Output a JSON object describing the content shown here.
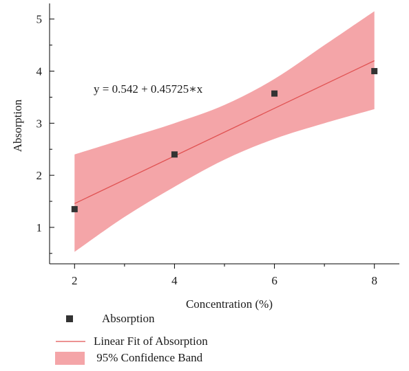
{
  "chart_data": {
    "type": "scatter",
    "xlabel": "Concentration (%)",
    "ylabel": "Absorption",
    "xlim": [
      1.5,
      8.5
    ],
    "ylim": [
      0.3,
      5.3
    ],
    "x_ticks": [
      2,
      4,
      6,
      8
    ],
    "y_ticks": [
      1,
      2,
      3,
      4,
      5
    ],
    "grid": false,
    "annotation": "y = 0.542 + 0.45725∗x",
    "series": [
      {
        "name": "Absorption",
        "marker": "square",
        "color": "#333333",
        "points": [
          {
            "x": 2,
            "y": 1.35
          },
          {
            "x": 4,
            "y": 2.4
          },
          {
            "x": 6,
            "y": 3.57
          },
          {
            "x": 8,
            "y": 4.0
          }
        ]
      },
      {
        "name": "Linear Fit of Absorption",
        "type": "line",
        "color": "#e05252",
        "intercept": 0.542,
        "slope": 0.45725,
        "x_range": [
          2,
          8
        ]
      },
      {
        "name": "95% Confidence Band",
        "type": "band",
        "color": "#f4a5a8",
        "upper": [
          {
            "x": 2,
            "y": 2.4
          },
          {
            "x": 3,
            "y": 2.7
          },
          {
            "x": 4,
            "y": 3.0
          },
          {
            "x": 5,
            "y": 3.35
          },
          {
            "x": 6,
            "y": 3.85
          },
          {
            "x": 7,
            "y": 4.5
          },
          {
            "x": 8,
            "y": 5.15
          }
        ],
        "lower": [
          {
            "x": 2,
            "y": 0.53
          },
          {
            "x": 3,
            "y": 1.2
          },
          {
            "x": 4,
            "y": 1.78
          },
          {
            "x": 5,
            "y": 2.3
          },
          {
            "x": 6,
            "y": 2.7
          },
          {
            "x": 7,
            "y": 3.0
          },
          {
            "x": 8,
            "y": 3.27
          }
        ]
      }
    ],
    "legend": {
      "position": "bottom-left",
      "items": [
        {
          "label": "Absorption",
          "kind": "marker"
        },
        {
          "label": "Linear Fit of Absorption",
          "kind": "line"
        },
        {
          "label": " 95% Confidence Band",
          "kind": "band"
        }
      ]
    }
  }
}
